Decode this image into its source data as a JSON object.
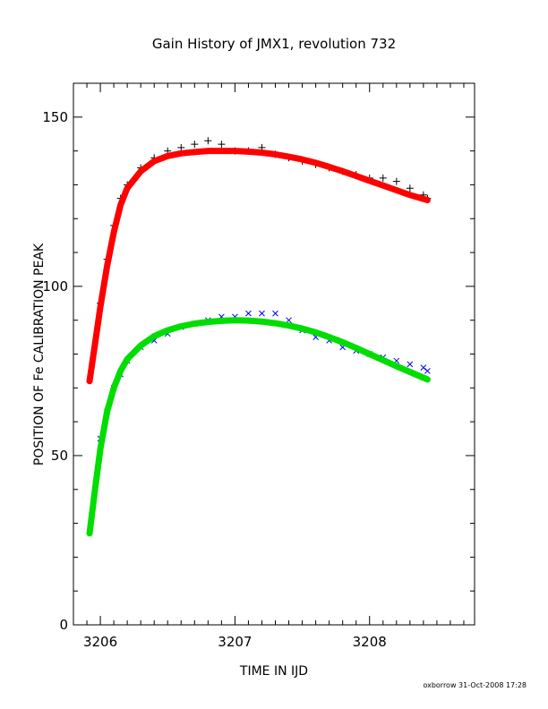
{
  "chart_data": {
    "type": "scatter",
    "title": "Gain History of JMX1, revolution 732",
    "xlabel": "TIME IN IJD",
    "ylabel": "POSITION OF Fe CALIBRATION PEAK",
    "xlim": [
      3205.8,
      3208.78
    ],
    "ylim": [
      0,
      160
    ],
    "xticks": [
      3206,
      3207,
      3208
    ],
    "xtick_labels": [
      "3206",
      "3207",
      "3208"
    ],
    "yticks": [
      0,
      50,
      100,
      150
    ],
    "ytick_labels": [
      "0",
      "50",
      "100",
      "150"
    ],
    "grid": false,
    "legend": "none",
    "footer": "oxborrow 31-Oct-2008 17:28",
    "series": [
      {
        "marker": "plus",
        "color": "#000000",
        "x": [
          3206.0,
          3206.05,
          3206.1,
          3206.15,
          3206.2,
          3206.3,
          3206.4,
          3206.5,
          3206.6,
          3206.7,
          3206.8,
          3206.9,
          3207.0,
          3207.1,
          3207.2,
          3207.3,
          3207.4,
          3207.5,
          3207.6,
          3207.7,
          3207.8,
          3207.9,
          3208.0,
          3208.1,
          3208.2,
          3208.3,
          3208.4,
          3208.43
        ],
        "y": [
          95,
          108,
          118,
          126,
          130,
          135,
          138,
          140,
          141,
          142,
          143,
          142,
          140,
          140,
          141,
          139,
          138,
          137,
          136,
          135,
          134,
          133,
          132,
          132,
          131,
          129,
          127,
          126
        ]
      },
      {
        "marker": "x",
        "color": "#0000ff",
        "x": [
          3206.0,
          3206.05,
          3206.1,
          3206.15,
          3206.2,
          3206.3,
          3206.4,
          3206.5,
          3206.6,
          3206.7,
          3206.8,
          3206.9,
          3207.0,
          3207.1,
          3207.2,
          3207.3,
          3207.4,
          3207.5,
          3207.6,
          3207.7,
          3207.8,
          3207.9,
          3208.0,
          3208.1,
          3208.2,
          3208.3,
          3208.4,
          3208.43
        ],
        "y": [
          55,
          63,
          70,
          74,
          78,
          82,
          84,
          86,
          88,
          89,
          90,
          91,
          91,
          92,
          92,
          92,
          90,
          87,
          85,
          84,
          82,
          81,
          80,
          79,
          78,
          77,
          76,
          75
        ]
      },
      {
        "marker": "line",
        "color": "#ff0000",
        "x": [
          3205.92,
          3205.96,
          3206.0,
          3206.05,
          3206.1,
          3206.15,
          3206.2,
          3206.3,
          3206.4,
          3206.5,
          3206.6,
          3206.7,
          3206.8,
          3206.9,
          3207.0,
          3207.1,
          3207.2,
          3207.3,
          3207.4,
          3207.5,
          3207.6,
          3207.7,
          3207.8,
          3207.9,
          3208.0,
          3208.1,
          3208.2,
          3208.3,
          3208.43
        ],
        "y": [
          72,
          83,
          94,
          106,
          116,
          124,
          129,
          134,
          137,
          138.5,
          139.3,
          139.7,
          140,
          140,
          140,
          139.8,
          139.5,
          139,
          138.3,
          137.5,
          136.5,
          135.3,
          134,
          132.6,
          131.2,
          129.8,
          128.4,
          127,
          125.5
        ]
      },
      {
        "marker": "line",
        "color": "#00dd00",
        "x": [
          3205.92,
          3205.96,
          3206.0,
          3206.05,
          3206.1,
          3206.15,
          3206.2,
          3206.3,
          3206.4,
          3206.5,
          3206.6,
          3206.7,
          3206.8,
          3206.9,
          3207.0,
          3207.1,
          3207.2,
          3207.3,
          3207.4,
          3207.5,
          3207.6,
          3207.7,
          3207.8,
          3207.9,
          3208.0,
          3208.1,
          3208.2,
          3208.3,
          3208.43
        ],
        "y": [
          27,
          40,
          52,
          63,
          70,
          75,
          78.5,
          82.5,
          85.3,
          87,
          88.2,
          89,
          89.5,
          89.8,
          90,
          89.9,
          89.6,
          89.1,
          88.4,
          87.5,
          86.4,
          85,
          83.5,
          81.8,
          80,
          78.2,
          76.4,
          74.7,
          72.5
        ]
      }
    ]
  }
}
